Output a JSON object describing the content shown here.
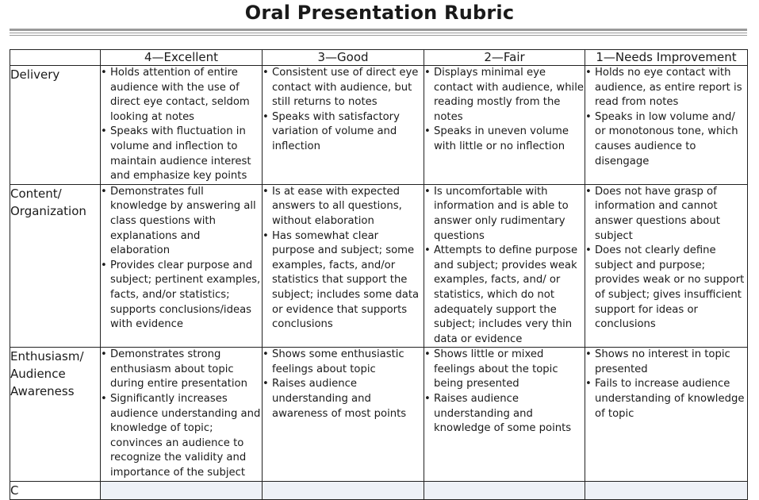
{
  "title": "Oral Presentation Rubric",
  "headers": [
    "",
    "4—Excellent",
    "3—Good",
    "2—Fair",
    "1—Needs Improvement"
  ],
  "rows": [
    {
      "category": [
        "Delivery"
      ],
      "cells": [
        [
          "Holds attention of entire audience with the use of direct eye contact, seldom looking at notes",
          "Speaks with fluctuation in volume and inflection to maintain audience interest and emphasize key points"
        ],
        [
          "Consistent use of direct eye contact with audience, but still returns to notes",
          "Speaks with satisfactory variation of volume and inflection"
        ],
        [
          "Displays minimal eye contact with audience, while reading mostly from the notes",
          "Speaks in uneven volume with little or no inflection"
        ],
        [
          "Holds no eye contact with audience, as entire report is read from notes",
          "Speaks in low volume and/ or monotonous tone, which causes audience to disengage"
        ]
      ]
    },
    {
      "category": [
        "Content/",
        "Organization"
      ],
      "cells": [
        [
          "Demonstrates full knowledge by answering all class questions with explanations and elaboration",
          "Provides clear purpose and subject; pertinent examples, facts, and/or statistics; supports conclusions/ideas with evidence"
        ],
        [
          "Is at ease with expected answers to all questions, without elaboration",
          "Has somewhat clear purpose and subject; some examples, facts, and/or statistics that support the subject; includes some data or evidence that supports conclusions"
        ],
        [
          "Is uncomfortable with information and is able to answer only rudimentary questions",
          "Attempts to define purpose and subject; provides weak examples, facts, and/ or statistics, which do not adequately support the subject; includes very thin data or evidence"
        ],
        [
          "Does not have grasp of information and cannot answer questions about subject",
          "Does not clearly define subject and purpose; provides weak or no support of subject; gives insufficient support for ideas or conclusions"
        ]
      ]
    },
    {
      "category": [
        "Enthusiasm/",
        "Audience",
        "Awareness"
      ],
      "cells": [
        [
          "Demonstrates strong enthusiasm about topic during entire presentation",
          "Significantly increases audience understanding and knowledge of topic; convinces an audience to recognize the validity and importance of the subject"
        ],
        [
          "Shows some enthusiastic feelings about topic",
          "Raises audience understanding and awareness of most points"
        ],
        [
          "Shows little or mixed feelings about the topic being presented",
          "Raises audience understanding and knowledge of some points"
        ],
        [
          "Shows no interest in topic presented",
          "Fails to increase audience understanding of knowledge of topic"
        ]
      ]
    }
  ],
  "partial_row_label": "C",
  "bullet_glyph": "•"
}
